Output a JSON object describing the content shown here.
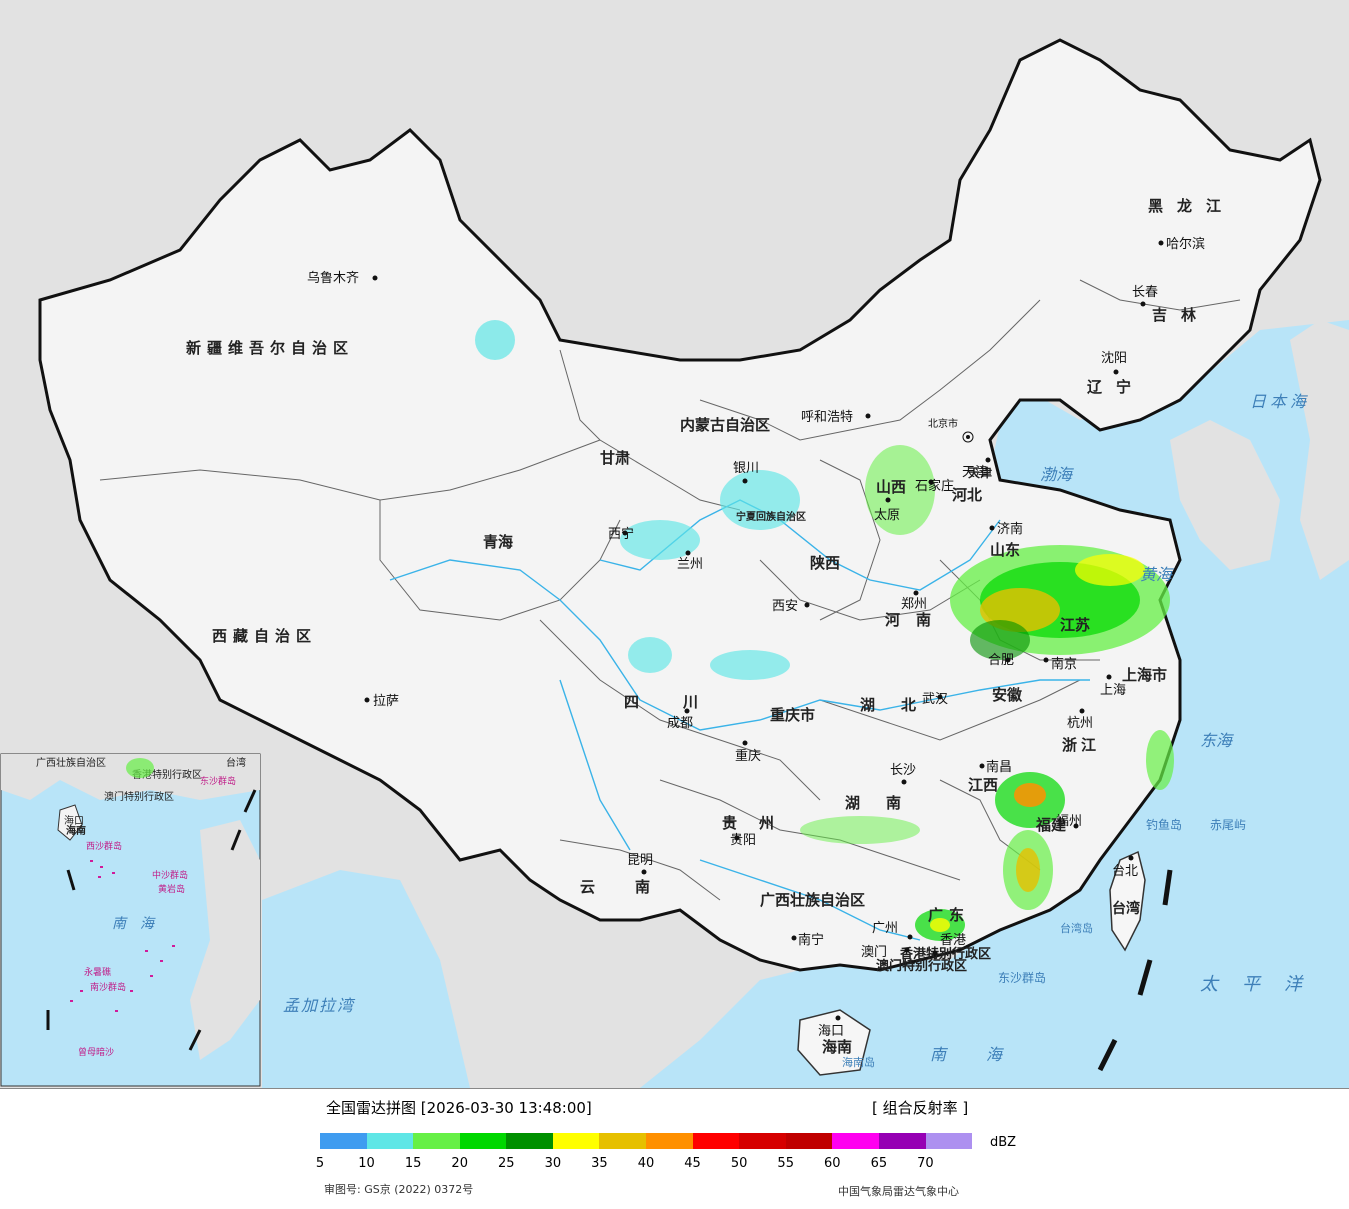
{
  "map": {
    "province_labels": [
      "新疆维吾尔自治区",
      "西藏自治区",
      "青海",
      "甘肃",
      "内蒙古自治区",
      "黑龙江",
      "吉林",
      "辽宁",
      "河北",
      "山西",
      "山东",
      "河南",
      "陕西",
      "四川",
      "重庆市",
      "湖北",
      "湖南",
      "江西",
      "安徽",
      "江苏",
      "浙江",
      "福建",
      "广东",
      "广西壮族自治区",
      "云南",
      "贵州",
      "海南",
      "上海市",
      "天津",
      "宁夏回族自治区",
      "香港特别行政区",
      "澳门特别行政区",
      "台湾"
    ],
    "cities": [
      "乌鲁木齐",
      "拉萨",
      "西宁",
      "兰州",
      "银川",
      "呼和浩特",
      "北京市",
      "天津",
      "石家庄",
      "太原",
      "济南",
      "郑州",
      "西安",
      "成都",
      "重庆",
      "武汉",
      "合肥",
      "南京",
      "上海",
      "杭州",
      "长沙",
      "南昌",
      "福州",
      "台北",
      "广州",
      "澳门",
      "香港",
      "南宁",
      "贵阳",
      "昆明",
      "海口",
      "沈阳",
      "长春",
      "哈尔滨"
    ],
    "sea_labels": [
      "日本海",
      "渤海",
      "黄海",
      "东海",
      "南海",
      "太平洋",
      "孟加拉湾",
      "台湾岛",
      "海南岛",
      "钓鱼岛",
      "赤尾屿",
      "东沙群岛"
    ],
    "inset": {
      "labels": [
        "广西壮族自治区",
        "香港特别行政区",
        "澳门特别行政区",
        "台湾",
        "海口",
        "海南",
        "东沙群岛",
        "西沙群岛",
        "中沙群岛",
        "黄岩岛",
        "南海",
        "永暑礁",
        "南沙群岛",
        "曾母暗沙"
      ]
    }
  },
  "legend": {
    "title": "全国雷达拼图 [2026-03-30 13:48:00]",
    "product": "[ 组合反射率 ]",
    "unit": "dBZ",
    "ticks": [
      "5",
      "10",
      "15",
      "20",
      "25",
      "30",
      "35",
      "40",
      "45",
      "50",
      "55",
      "60",
      "65",
      "70"
    ],
    "colors": [
      "#3f9cf0",
      "#5fe6e6",
      "#66f046",
      "#00d800",
      "#009000",
      "#ffff00",
      "#e6c000",
      "#ff9000",
      "#ff0000",
      "#d60000",
      "#c00000",
      "#ff00f0",
      "#9600b4",
      "#ad90f0"
    ],
    "review_number": "审图号: GS京 (2022) 0372号",
    "source": "中国气象局雷达气象中心"
  }
}
